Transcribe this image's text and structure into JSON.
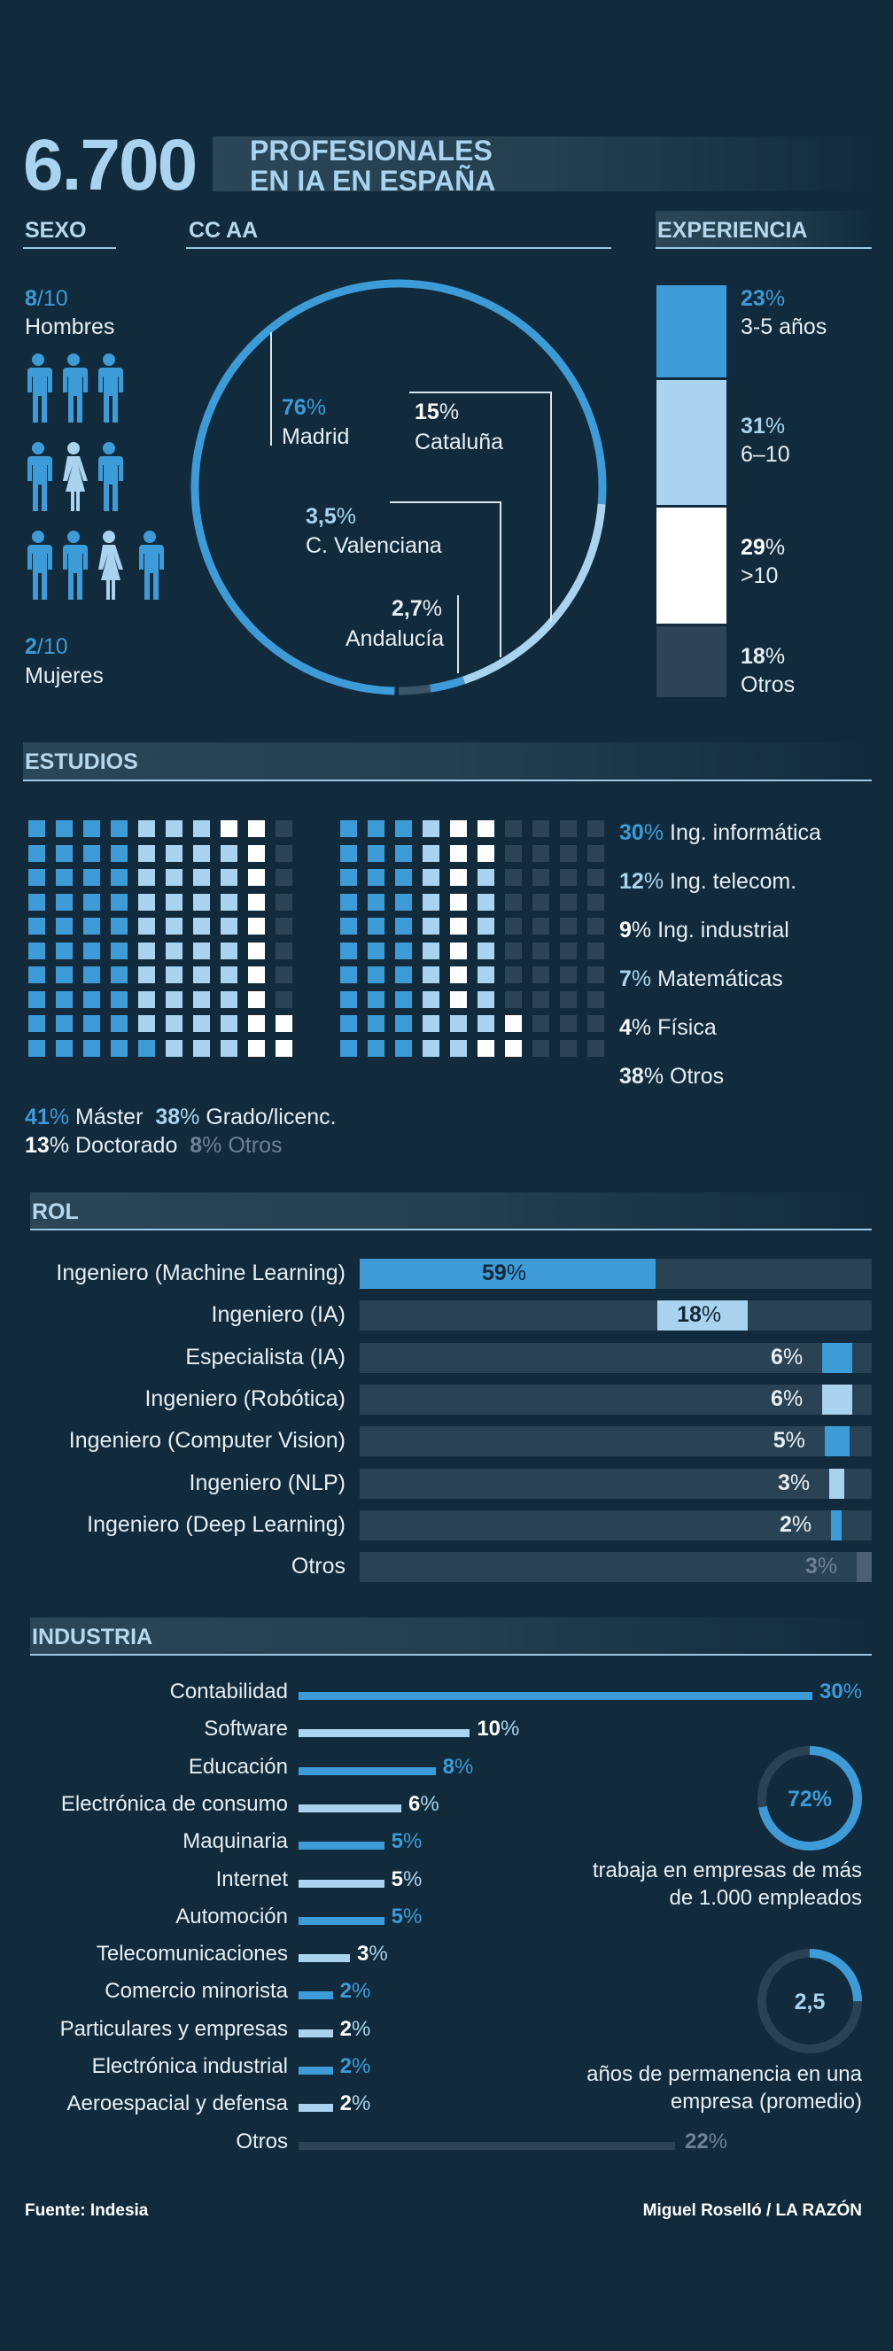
{
  "header": {
    "total": "6.700",
    "line1": "PROFESIONALES",
    "line2": "EN IA EN ESPAÑA"
  },
  "sexo": {
    "title": "SEXO",
    "men_value": "8",
    "men_denom": "/10",
    "men_label": "Hombres",
    "women_value": "2",
    "women_denom": "/10",
    "women_label": "Mujeres",
    "icons": [
      "male",
      "male",
      "male",
      "male",
      "female",
      "male",
      "male",
      "male",
      "female",
      "male"
    ]
  },
  "ccaa": {
    "title": "CC AA",
    "items": [
      {
        "value": "76",
        "unit": "%",
        "label": "Madrid"
      },
      {
        "value": "15",
        "unit": "%",
        "label": "Cataluña"
      },
      {
        "value": "3,5",
        "unit": "%",
        "label": "C. Valenciana"
      },
      {
        "value": "2,7",
        "unit": "%",
        "label": "Andalucía"
      }
    ]
  },
  "experiencia": {
    "title": "EXPERIENCIA",
    "items": [
      {
        "value": "23",
        "unit": "%",
        "label": "3-5 años",
        "color": "#3d9bd8"
      },
      {
        "value": "31",
        "unit": "%",
        "label": "6–10",
        "color": "#a9d3ee"
      },
      {
        "value": "29",
        "unit": "%",
        "label": ">10",
        "color": "#ffffff"
      },
      {
        "value": "18",
        "unit": "%",
        "label": "Otros",
        "color": "#2c4456"
      }
    ]
  },
  "estudios": {
    "title": "ESTUDIOS",
    "degrees": [
      {
        "value": "41",
        "unit": "%",
        "label": "Máster",
        "color": "#3d9bd8"
      },
      {
        "value": "38",
        "unit": "%",
        "label": "Grado/licenc.",
        "color": "#a9d3ee"
      },
      {
        "value": "13",
        "unit": "%",
        "label": "Doctorado",
        "color": "#ffffff"
      },
      {
        "value": "8",
        "unit": "%",
        "label": "Otros",
        "color": "#2c4456"
      }
    ],
    "fields": [
      {
        "value": "30",
        "unit": "%",
        "label": "Ing. informática",
        "color": "#3d9bd8"
      },
      {
        "value": "12",
        "unit": "%",
        "label": "Ing. telecom.",
        "color": "#a9d3ee"
      },
      {
        "value": "9",
        "unit": "%",
        "label": "Ing. industrial",
        "color": "#ffffff"
      },
      {
        "value": "7",
        "unit": "%",
        "label": "Matemáticas",
        "color": "#a9d3ee"
      },
      {
        "value": "4",
        "unit": "%",
        "label": "Física",
        "color": "#ffffff"
      },
      {
        "value": "38",
        "unit": "%",
        "label": "Otros",
        "color": "#2c4456"
      }
    ]
  },
  "rol": {
    "title": "ROL",
    "items": [
      {
        "label": "Ingeniero (Machine Learning)",
        "value": "59",
        "unit": "%"
      },
      {
        "label": "Ingeniero (IA)",
        "value": "18",
        "unit": "%"
      },
      {
        "label": "Especialista (IA)",
        "value": "6",
        "unit": "%"
      },
      {
        "label": "Ingeniero (Robótica)",
        "value": "6",
        "unit": "%"
      },
      {
        "label": "Ingeniero (Computer Vision)",
        "value": "5",
        "unit": "%"
      },
      {
        "label": "Ingeniero (NLP)",
        "value": "3",
        "unit": "%"
      },
      {
        "label": "Ingeniero (Deep Learning)",
        "value": "2",
        "unit": "%"
      },
      {
        "label": "Otros",
        "value": "3",
        "unit": "%"
      }
    ]
  },
  "industria": {
    "title": "INDUSTRIA",
    "items": [
      {
        "label": "Contabilidad",
        "value": "30",
        "unit": "%"
      },
      {
        "label": "Software",
        "value": "10",
        "unit": "%"
      },
      {
        "label": "Educación",
        "value": "8",
        "unit": "%"
      },
      {
        "label": "Electrónica de consumo",
        "value": "6",
        "unit": "%"
      },
      {
        "label": "Maquinaria",
        "value": "5",
        "unit": "%"
      },
      {
        "label": "Internet",
        "value": "5",
        "unit": "%"
      },
      {
        "label": "Automoción",
        "value": "5",
        "unit": "%"
      },
      {
        "label": "Telecomunicaciones",
        "value": "3",
        "unit": "%"
      },
      {
        "label": "Comercio minorista",
        "value": "2",
        "unit": "%"
      },
      {
        "label": "Particulares y empresas",
        "value": "2",
        "unit": "%"
      },
      {
        "label": "Electrónica industrial",
        "value": "2",
        "unit": "%"
      },
      {
        "label": "Aeroespacial y defensa",
        "value": "2",
        "unit": "%"
      },
      {
        "label": "Otros",
        "value": "22",
        "unit": "%"
      }
    ],
    "stat1": {
      "value": "72%",
      "fraction": 0.72,
      "line1": "trabaja en empresas de más",
      "line2": "de 1.000 empleados"
    },
    "stat2": {
      "value": "2,5",
      "fraction": 0.25,
      "line1": "años de permanencia en una",
      "line2": "empresa (promedio)"
    }
  },
  "footer": {
    "source": "Fuente: Indesia",
    "credit": "Miguel Roselló / LA RAZÓN"
  },
  "colors": {
    "blue": "#3d9bd8",
    "light": "#a9d3ee",
    "white": "#ffffff",
    "dark": "#2c4456",
    "background": "#112b3c"
  },
  "chart_data": [
    {
      "type": "pie",
      "title": "CC AA",
      "categories": [
        "Madrid",
        "Cataluña",
        "C. Valenciana",
        "Andalucía"
      ],
      "values": [
        76,
        15,
        3.5,
        2.7
      ]
    },
    {
      "type": "bar",
      "title": "EXPERIENCIA",
      "categories": [
        "3-5 años",
        "6–10",
        ">10",
        "Otros"
      ],
      "values": [
        23,
        31,
        29,
        18
      ]
    },
    {
      "type": "bar",
      "title": "ESTUDIOS",
      "categories": [
        "Máster",
        "Grado/licenc.",
        "Doctorado",
        "Otros"
      ],
      "values": [
        41,
        38,
        13,
        8
      ]
    },
    {
      "type": "bar",
      "title": "ESTUDIOS",
      "categories": [
        "Ing. informática",
        "Ing. telecom.",
        "Ing. industrial",
        "Matemáticas",
        "Física",
        "Otros"
      ],
      "values": [
        30,
        12,
        9,
        7,
        4,
        38
      ]
    },
    {
      "type": "bar",
      "title": "ROL",
      "categories": [
        "Ingeniero (Machine Learning)",
        "Ingeniero (IA)",
        "Especialista (IA)",
        "Ingeniero (Robótica)",
        "Ingeniero (Computer Vision)",
        "Ingeniero (NLP)",
        "Ingeniero (Deep Learning)",
        "Otros"
      ],
      "values": [
        59,
        18,
        6,
        6,
        5,
        3,
        2,
        3
      ]
    },
    {
      "type": "bar",
      "title": "INDUSTRIA",
      "categories": [
        "Contabilidad",
        "Software",
        "Educación",
        "Electrónica de consumo",
        "Maquinaria",
        "Internet",
        "Automoción",
        "Telecomunicaciones",
        "Comercio minorista",
        "Particulares y empresas",
        "Electrónica industrial",
        "Aeroespacial y defensa",
        "Otros"
      ],
      "values": [
        30,
        10,
        8,
        6,
        5,
        5,
        5,
        3,
        2,
        2,
        2,
        2,
        22
      ]
    }
  ]
}
